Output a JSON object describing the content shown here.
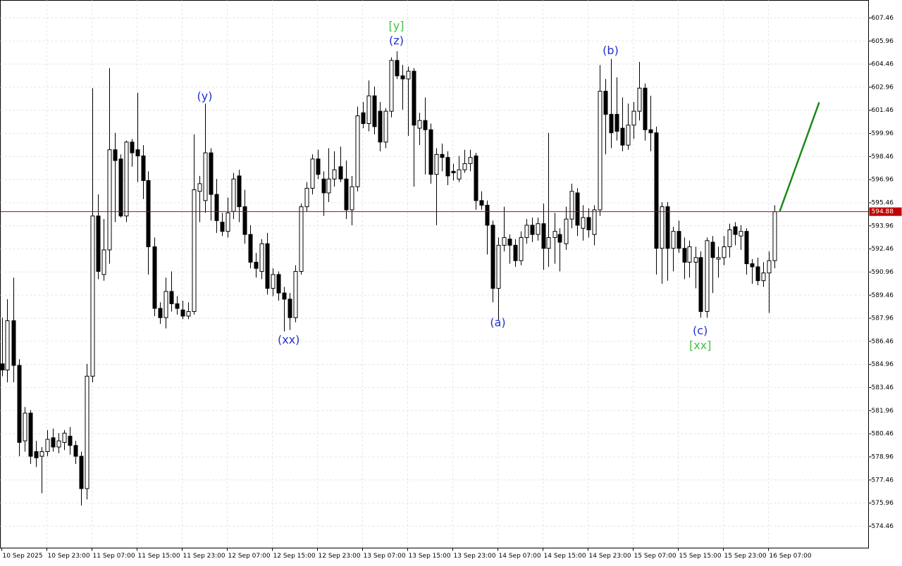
{
  "chart_data": {
    "type": "candlestick",
    "ohlc": [
      [
        585.0,
        588.0,
        584.2,
        584.6
      ],
      [
        584.6,
        589.2,
        583.8,
        587.8
      ],
      [
        587.8,
        590.6,
        583.8,
        584.9
      ],
      [
        584.9,
        585.3,
        579.0,
        579.9
      ],
      [
        580.0,
        582.2,
        579.3,
        581.8
      ],
      [
        581.8,
        582.0,
        578.5,
        579.0
      ],
      [
        579.3,
        580.0,
        578.3,
        578.9
      ],
      [
        579.0,
        579.6,
        576.6,
        579.3
      ],
      [
        579.3,
        580.7,
        579.0,
        580.1
      ],
      [
        580.2,
        580.8,
        579.3,
        579.6
      ],
      [
        579.6,
        580.5,
        579.2,
        580.0
      ],
      [
        579.9,
        580.7,
        579.4,
        580.5
      ],
      [
        580.3,
        580.9,
        579.1,
        579.7
      ],
      [
        579.7,
        580.0,
        578.5,
        579.0
      ],
      [
        579.0,
        579.3,
        575.8,
        576.9
      ],
      [
        576.9,
        585.0,
        576.2,
        584.2
      ],
      [
        584.2,
        602.9,
        583.8,
        594.6
      ],
      [
        594.6,
        596.0,
        590.5,
        591.0
      ],
      [
        590.8,
        594.4,
        590.4,
        592.4
      ],
      [
        592.4,
        604.2,
        591.5,
        598.9
      ],
      [
        598.9,
        600.0,
        594.2,
        598.2
      ],
      [
        598.3,
        598.6,
        594.5,
        594.6
      ],
      [
        594.6,
        599.5,
        594.2,
        599.4
      ],
      [
        599.4,
        599.6,
        597.8,
        598.7
      ],
      [
        598.9,
        602.6,
        596.8,
        598.5
      ],
      [
        598.5,
        599.2,
        595.7,
        596.9
      ],
      [
        596.9,
        597.5,
        590.8,
        592.6
      ],
      [
        592.6,
        593.2,
        588.1,
        588.6
      ],
      [
        588.6,
        589.0,
        587.6,
        588.0
      ],
      [
        588.0,
        590.6,
        587.3,
        589.7
      ],
      [
        589.7,
        591.0,
        588.4,
        588.9
      ],
      [
        588.9,
        589.4,
        588.2,
        588.6
      ],
      [
        588.5,
        589.1,
        587.9,
        588.1
      ],
      [
        588.1,
        589.0,
        587.9,
        588.4
      ],
      [
        588.4,
        599.9,
        588.2,
        596.3
      ],
      [
        596.2,
        597.2,
        594.2,
        596.7
      ],
      [
        595.6,
        601.9,
        594.8,
        598.7
      ],
      [
        598.7,
        599.0,
        594.3,
        596.0
      ],
      [
        596.0,
        597.0,
        593.5,
        594.3
      ],
      [
        594.2,
        594.8,
        593.3,
        593.6
      ],
      [
        593.6,
        595.8,
        593.2,
        594.8
      ],
      [
        594.9,
        597.4,
        594.4,
        597.0
      ],
      [
        597.2,
        597.6,
        594.2,
        595.2
      ],
      [
        595.2,
        596.3,
        592.8,
        593.4
      ],
      [
        593.4,
        594.0,
        591.2,
        591.6
      ],
      [
        591.6,
        592.2,
        590.6,
        591.2
      ],
      [
        591.0,
        593.1,
        590.5,
        592.8
      ],
      [
        592.8,
        593.5,
        589.5,
        589.9
      ],
      [
        589.9,
        591.2,
        589.4,
        590.8
      ],
      [
        590.8,
        591.0,
        589.1,
        589.6
      ],
      [
        589.6,
        590.0,
        587.1,
        589.2
      ],
      [
        589.2,
        589.6,
        587.2,
        588.0
      ],
      [
        588.0,
        591.4,
        587.7,
        591.0
      ],
      [
        591.0,
        595.4,
        590.8,
        595.2
      ],
      [
        595.2,
        596.8,
        594.9,
        596.4
      ],
      [
        596.4,
        598.6,
        596.0,
        598.3
      ],
      [
        598.3,
        598.9,
        597.0,
        597.3
      ],
      [
        597.0,
        597.5,
        594.6,
        596.1
      ],
      [
        596.1,
        599.0,
        595.5,
        597.0
      ],
      [
        597.0,
        598.8,
        596.5,
        597.6
      ],
      [
        597.8,
        599.1,
        596.8,
        597.0
      ],
      [
        597.0,
        598.2,
        594.4,
        595.0
      ],
      [
        595.0,
        597.2,
        594.0,
        596.5
      ],
      [
        596.5,
        601.7,
        596.2,
        601.1
      ],
      [
        601.3,
        602.0,
        600.3,
        600.6
      ],
      [
        600.6,
        603.4,
        600.1,
        602.4
      ],
      [
        602.4,
        603.0,
        599.9,
        600.4
      ],
      [
        601.4,
        602.0,
        598.8,
        599.4
      ],
      [
        599.4,
        601.6,
        599.0,
        601.4
      ],
      [
        601.4,
        604.9,
        601.0,
        604.7
      ],
      [
        604.7,
        605.3,
        603.5,
        603.7
      ],
      [
        603.7,
        604.4,
        601.5,
        603.5
      ],
      [
        603.5,
        604.3,
        599.8,
        604.0
      ],
      [
        604.0,
        604.2,
        596.5,
        600.5
      ],
      [
        600.3,
        601.3,
        599.2,
        600.8
      ],
      [
        600.8,
        602.3,
        597.3,
        600.2
      ],
      [
        600.2,
        600.6,
        596.7,
        597.3
      ],
      [
        597.3,
        599.0,
        594.0,
        598.6
      ],
      [
        598.6,
        599.3,
        597.5,
        598.4
      ],
      [
        598.4,
        598.8,
        596.6,
        597.2
      ],
      [
        597.5,
        598.0,
        596.9,
        597.4
      ],
      [
        597.0,
        598.5,
        596.8,
        597.6
      ],
      [
        597.6,
        598.9,
        597.4,
        598.0
      ],
      [
        598.0,
        598.9,
        597.5,
        598.4
      ],
      [
        598.5,
        598.7,
        595.0,
        595.6
      ],
      [
        595.6,
        596.2,
        595.0,
        595.3
      ],
      [
        595.3,
        595.6,
        592.1,
        594.0
      ],
      [
        594.0,
        594.3,
        589.0,
        589.9
      ],
      [
        589.9,
        593.2,
        587.8,
        592.7
      ],
      [
        592.7,
        595.2,
        592.3,
        593.2
      ],
      [
        593.1,
        593.4,
        591.5,
        592.7
      ],
      [
        592.7,
        593.1,
        591.3,
        591.7
      ],
      [
        591.7,
        593.6,
        591.4,
        593.2
      ],
      [
        593.2,
        594.4,
        592.8,
        594.0
      ],
      [
        594.0,
        594.5,
        592.9,
        593.4
      ],
      [
        593.4,
        594.5,
        593.0,
        594.1
      ],
      [
        594.1,
        595.4,
        591.1,
        592.5
      ],
      [
        592.5,
        600.0,
        591.3,
        593.2
      ],
      [
        593.2,
        594.8,
        591.5,
        593.6
      ],
      [
        593.4,
        593.8,
        591.0,
        592.9
      ],
      [
        592.8,
        595.2,
        592.4,
        594.4
      ],
      [
        594.4,
        596.7,
        593.8,
        596.2
      ],
      [
        596.1,
        596.4,
        593.3,
        594.0
      ],
      [
        593.8,
        595.3,
        593.0,
        594.5
      ],
      [
        594.5,
        595.1,
        593.2,
        593.7
      ],
      [
        593.4,
        595.3,
        592.7,
        595.0
      ],
      [
        595.0,
        604.4,
        594.6,
        602.7
      ],
      [
        602.7,
        603.5,
        598.6,
        601.2
      ],
      [
        601.2,
        604.8,
        599.0,
        600.0
      ],
      [
        601.2,
        603.6,
        599.5,
        600.1
      ],
      [
        600.3,
        602.3,
        598.8,
        599.2
      ],
      [
        599.2,
        601.9,
        598.9,
        600.5
      ],
      [
        600.5,
        602.0,
        599.6,
        601.4
      ],
      [
        601.4,
        604.6,
        600.8,
        602.9
      ],
      [
        602.9,
        603.2,
        599.5,
        600.2
      ],
      [
        600.2,
        602.4,
        598.8,
        600.0
      ],
      [
        600.0,
        600.4,
        590.8,
        592.5
      ],
      [
        592.5,
        595.5,
        590.2,
        595.2
      ],
      [
        595.2,
        595.5,
        590.4,
        592.5
      ],
      [
        592.5,
        593.9,
        591.0,
        593.6
      ],
      [
        593.6,
        594.3,
        592.2,
        592.5
      ],
      [
        592.5,
        593.2,
        590.5,
        591.6
      ],
      [
        591.6,
        593.0,
        590.6,
        592.6
      ],
      [
        591.6,
        592.6,
        589.9,
        591.9
      ],
      [
        591.9,
        592.3,
        588.0,
        588.4
      ],
      [
        588.4,
        593.2,
        588.0,
        593.0
      ],
      [
        592.9,
        593.3,
        589.6,
        591.9
      ],
      [
        591.8,
        592.6,
        590.6,
        591.9
      ],
      [
        591.9,
        593.3,
        591.4,
        592.6
      ],
      [
        592.6,
        594.1,
        591.9,
        593.7
      ],
      [
        593.9,
        594.2,
        592.7,
        593.4
      ],
      [
        593.3,
        594.0,
        592.4,
        593.6
      ],
      [
        593.6,
        593.8,
        590.8,
        591.5
      ],
      [
        591.5,
        591.8,
        590.2,
        591.3
      ],
      [
        591.3,
        591.9,
        590.1,
        590.4
      ],
      [
        590.4,
        591.6,
        590.0,
        590.9
      ],
      [
        590.9,
        592.3,
        588.3,
        591.7
      ],
      [
        591.7,
        595.3,
        591.2,
        594.88
      ]
    ],
    "xlim": [
      -0.25,
      153.75
    ],
    "xticks": [
      {
        "value": 0,
        "label": "10 Sep 2025"
      },
      {
        "value": 8,
        "label": "10 Sep 23:00"
      },
      {
        "value": 16,
        "label": "11 Sep 07:00"
      },
      {
        "value": 24,
        "label": "11 Sep 15:00"
      },
      {
        "value": 32,
        "label": "11 Sep 23:00"
      },
      {
        "value": 40,
        "label": "12 Sep 07:00"
      },
      {
        "value": 48,
        "label": "12 Sep 15:00"
      },
      {
        "value": 56,
        "label": "12 Sep 23:00"
      },
      {
        "value": 64,
        "label": "13 Sep 07:00"
      },
      {
        "value": 72,
        "label": "13 Sep 15:00"
      },
      {
        "value": 80,
        "label": "13 Sep 23:00"
      },
      {
        "value": 88,
        "label": "14 Sep 07:00"
      },
      {
        "value": 96,
        "label": "14 Sep 15:00"
      },
      {
        "value": 104,
        "label": "14 Sep 23:00"
      },
      {
        "value": 112,
        "label": "15 Sep 07:00"
      },
      {
        "value": 120,
        "label": "15 Sep 15:00"
      },
      {
        "value": 128,
        "label": "15 Sep 23:00"
      },
      {
        "value": 136,
        "label": "16 Sep 07:00"
      }
    ],
    "ylim": [
      573.04,
      608.6
    ],
    "yticks": [
      607.46,
      605.96,
      604.46,
      602.96,
      601.46,
      599.96,
      598.46,
      596.96,
      595.46,
      593.96,
      592.46,
      590.96,
      589.46,
      587.96,
      586.46,
      584.96,
      583.46,
      581.96,
      580.46,
      578.96,
      577.46,
      575.96,
      574.46
    ],
    "grid": true,
    "up_color": "#ffffff",
    "down_color": "#000000",
    "current_price": 594.88,
    "current_price_color": "#c00000",
    "projection": {
      "x": [
        138,
        145
      ],
      "values": [
        594.9,
        601.98
      ],
      "color": "#1a8a1a"
    },
    "annotations": [
      {
        "text": "[y]",
        "x": 70,
        "y": 606.91,
        "color": "#44c044"
      },
      {
        "text": "(z)",
        "x": 70,
        "y": 605.95,
        "color": "#2030d0"
      },
      {
        "text": "(y)",
        "x": 36,
        "y": 602.34,
        "color": "#2030d0"
      },
      {
        "text": "(xx)",
        "x": 50.9,
        "y": 586.53,
        "color": "#2030d0"
      },
      {
        "text": "(a)",
        "x": 88,
        "y": 587.64,
        "color": "#2030d0"
      },
      {
        "text": "(b)",
        "x": 108,
        "y": 605.31,
        "color": "#2030d0"
      },
      {
        "text": "(c)",
        "x": 123.9,
        "y": 587.12,
        "color": "#2030d0"
      },
      {
        "text": "[xx]",
        "x": 123.9,
        "y": 586.16,
        "color": "#44c044"
      }
    ]
  }
}
